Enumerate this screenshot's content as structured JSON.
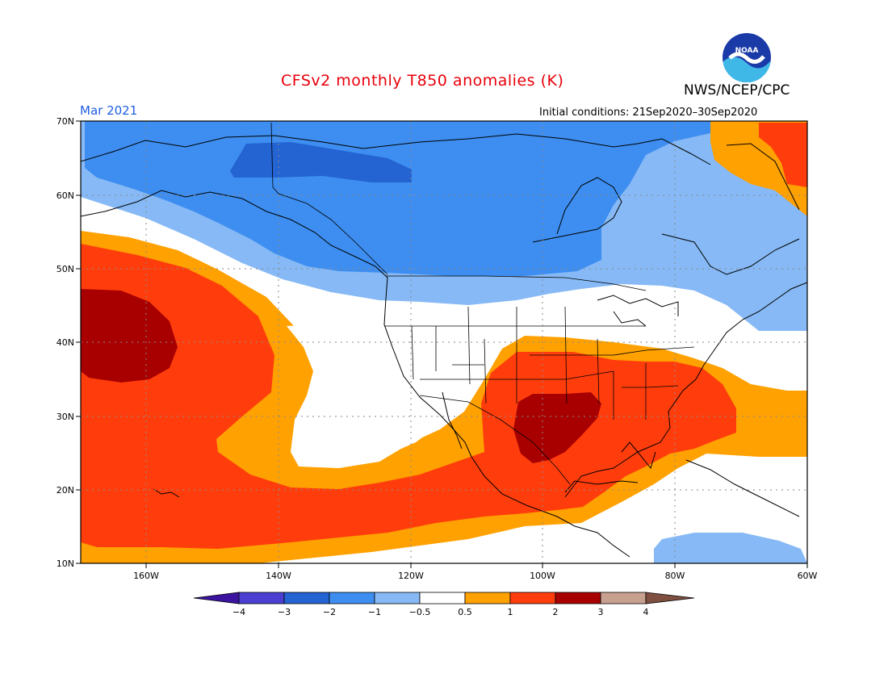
{
  "header": {
    "title": "CFSv2 monthly T850 anomalies (K)",
    "agency": "NWS/NCEP/CPC",
    "month": "Mar 2021",
    "initial_conditions": "Initial conditions: 21Sep2020–30Sep2020",
    "logo_text": "NOAA"
  },
  "map": {
    "lat_labels": [
      "70N",
      "60N",
      "50N",
      "40N",
      "30N",
      "20N",
      "10N"
    ],
    "lon_labels": [
      "160W",
      "140W",
      "120W",
      "100W",
      "80W",
      "60W"
    ]
  },
  "legend": {
    "colorbar_ticks": [
      "−4",
      "−3",
      "−2",
      "−1",
      "−0.5",
      "0.5",
      "1",
      "2",
      "3",
      "4"
    ],
    "colors": [
      "#3c14a0",
      "#4a3fd0",
      "#2363d2",
      "#3d8ef0",
      "#86b9f5",
      "#ffffff",
      "#ffa100",
      "#ff3d0c",
      "#a80000",
      "#c8a08f",
      "#7f5040"
    ]
  },
  "colors": {
    "title": "#e8000b",
    "month": "#1f5fe0"
  }
}
